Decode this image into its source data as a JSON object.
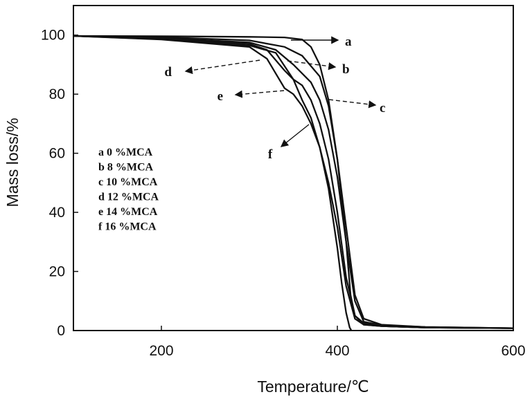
{
  "chart_data": {
    "type": "line",
    "title": "",
    "xlabel": "Temperature/℃",
    "ylabel": "Mass loss/%",
    "xlim": [
      100,
      600
    ],
    "ylim": [
      0,
      110
    ],
    "xticks": [
      200,
      400,
      600
    ],
    "yticks": [
      0,
      20,
      40,
      60,
      80,
      100
    ],
    "legend_position": "left",
    "legend": [
      "a 0 %MCA",
      "b 8 %MCA",
      "c 10 %MCA",
      "d 12 %MCA",
      "e 14 %MCA",
      "f 16 %MCA"
    ],
    "series": [
      {
        "name": "a",
        "x": [
          100,
          200,
          300,
          340,
          360,
          370,
          380,
          390,
          400,
          410,
          415,
          420,
          430,
          450,
          500,
          600
        ],
        "y": [
          99.7,
          99.6,
          99.4,
          99.2,
          98.5,
          96,
          90,
          78,
          58,
          30,
          12,
          5,
          2.5,
          1.5,
          1.0,
          0.8
        ]
      },
      {
        "name": "b",
        "x": [
          100,
          200,
          300,
          340,
          360,
          380,
          390,
          400,
          410,
          420,
          430,
          450,
          500,
          600
        ],
        "y": [
          99.7,
          99.3,
          98.2,
          96,
          93,
          86,
          76,
          58,
          35,
          12,
          4,
          2,
          1.2,
          0.8
        ]
      },
      {
        "name": "c",
        "x": [
          100,
          200,
          300,
          330,
          350,
          370,
          380,
          390,
          400,
          410,
          420,
          430,
          450,
          500,
          600
        ],
        "y": [
          99.7,
          99.0,
          97.5,
          95,
          90,
          84,
          78,
          68,
          52,
          30,
          10,
          3,
          1.8,
          1.2,
          0.8
        ]
      },
      {
        "name": "d",
        "x": [
          100,
          200,
          300,
          320,
          340,
          350,
          360,
          370,
          380,
          390,
          400,
          410,
          420,
          430,
          450,
          500,
          600
        ],
        "y": [
          99.7,
          98.8,
          97,
          95,
          88,
          85,
          83,
          78,
          70,
          58,
          40,
          18,
          5,
          2,
          1.5,
          1,
          0.8
        ]
      },
      {
        "name": "e",
        "x": [
          100,
          200,
          300,
          320,
          330,
          340,
          350,
          360,
          370,
          380,
          390,
          400,
          410,
          420,
          430,
          450,
          500,
          600
        ],
        "y": [
          99.7,
          98.5,
          96,
          92,
          87,
          82,
          80,
          76,
          70,
          62,
          50,
          35,
          15,
          4,
          2,
          1.5,
          1,
          0.8
        ]
      },
      {
        "name": "f",
        "x": [
          100,
          200,
          300,
          330,
          350,
          360,
          370,
          380,
          390,
          400,
          405,
          410,
          414,
          416
        ],
        "y": [
          99.7,
          98.6,
          96.5,
          94,
          85,
          78,
          72,
          62,
          48,
          28,
          16,
          6,
          1,
          0
        ]
      }
    ],
    "annotations": [
      {
        "text": "a",
        "series": "a"
      },
      {
        "text": "b",
        "series": "b"
      },
      {
        "text": "c",
        "series": "c"
      },
      {
        "text": "d",
        "series": "d"
      },
      {
        "text": "e",
        "series": "e"
      },
      {
        "text": "f",
        "series": "f"
      }
    ]
  }
}
